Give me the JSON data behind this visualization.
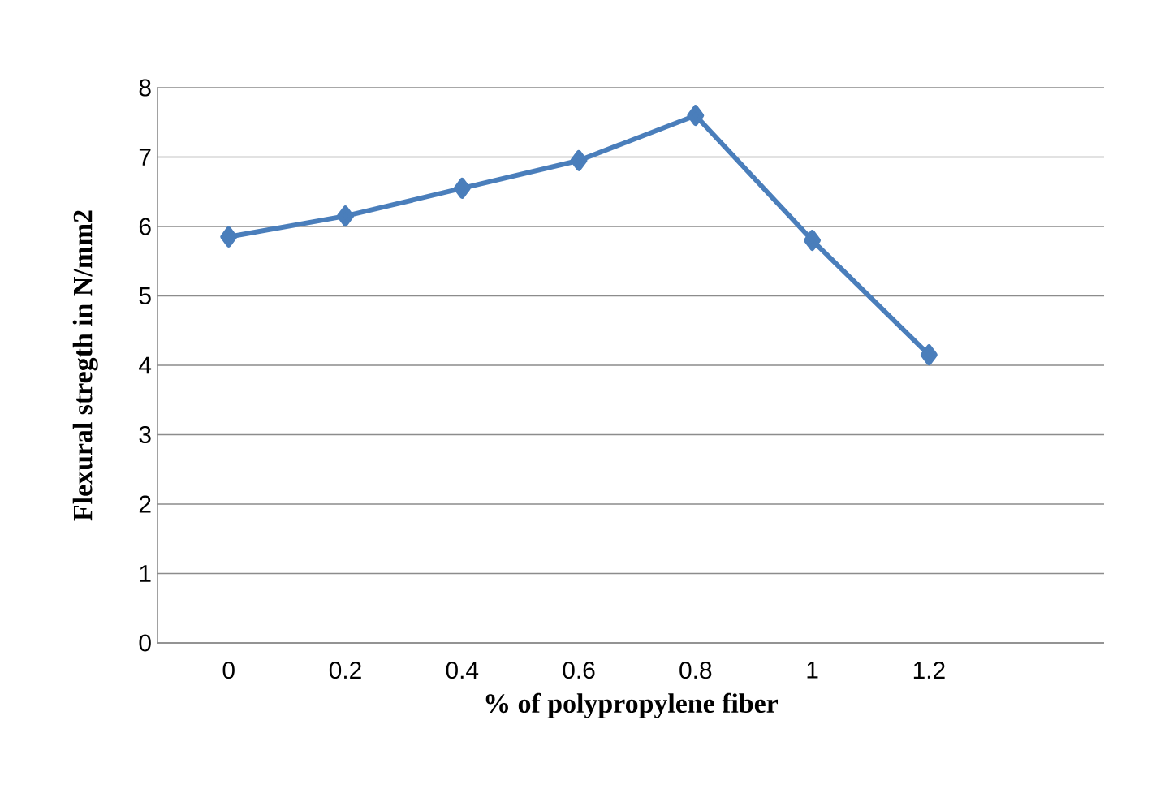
{
  "chart_data": {
    "type": "line",
    "xlabel": "% of polypropylene fiber",
    "ylabel": "Flexural stregth in N/mm2",
    "categories": [
      "0",
      "0.2",
      "0.4",
      "0.6",
      "0.8",
      "1",
      "1.2"
    ],
    "series": [
      {
        "color": "#4a7ebb",
        "values": [
          5.85,
          6.15,
          6.55,
          6.95,
          7.6,
          5.8,
          4.15
        ]
      }
    ],
    "ylim": [
      0,
      8
    ],
    "yticks": [
      0,
      1,
      2,
      3,
      4,
      5,
      6,
      7,
      8
    ],
    "grid": "y",
    "marker": "diamond",
    "line_style": "solid"
  }
}
